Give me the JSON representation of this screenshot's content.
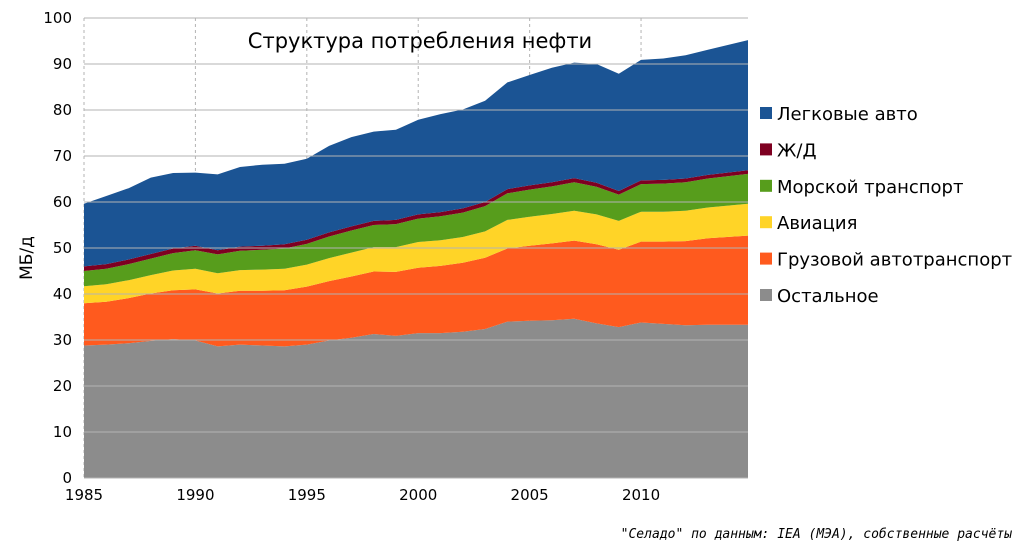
{
  "chart_data": {
    "type": "area",
    "title": "Структура потребления нефти",
    "xlabel": "",
    "ylabel": "МБ/д",
    "xlim": [
      1985,
      2014.8
    ],
    "ylim": [
      0,
      100
    ],
    "x_ticks": [
      1985,
      1990,
      1995,
      2000,
      2005,
      2010
    ],
    "y_ticks": [
      0,
      10,
      20,
      30,
      40,
      50,
      60,
      70,
      80,
      90,
      100
    ],
    "grid": true,
    "stacked": true,
    "legend_position": "right",
    "x": [
      1985,
      1986,
      1987,
      1988,
      1989,
      1990,
      1991,
      1992,
      1993,
      1994,
      1995,
      1996,
      1997,
      1998,
      1999,
      2000,
      2001,
      2002,
      2003,
      2004,
      2005,
      2006,
      2007,
      2008,
      2009,
      2010,
      2011,
      2012,
      2013,
      2014.8
    ],
    "series": [
      {
        "name": "Остальное",
        "color": "#8c8c8c",
        "values": [
          28.8,
          29.0,
          29.3,
          29.8,
          30.2,
          29.9,
          28.6,
          29.0,
          28.8,
          28.6,
          29.0,
          29.9,
          30.5,
          31.3,
          30.9,
          31.5,
          31.5,
          31.8,
          32.4,
          34.0,
          34.2,
          34.3,
          34.6,
          33.6,
          32.8,
          33.8,
          33.5,
          33.2,
          33.3,
          33.3
        ]
      },
      {
        "name": "Грузовой автотранспорт",
        "color": "#ff5a1e",
        "values": [
          9.2,
          9.3,
          9.8,
          10.3,
          10.6,
          11.1,
          11.5,
          11.7,
          11.9,
          12.2,
          12.6,
          12.9,
          13.3,
          13.6,
          13.9,
          14.2,
          14.6,
          15.0,
          15.5,
          15.9,
          16.3,
          16.7,
          17.0,
          17.2,
          16.8,
          17.6,
          17.9,
          18.3,
          18.8,
          19.4
        ]
      },
      {
        "name": "Авиация",
        "color": "#ffd427",
        "values": [
          3.7,
          3.8,
          3.9,
          4.0,
          4.3,
          4.5,
          4.4,
          4.5,
          4.6,
          4.7,
          4.8,
          5.0,
          5.2,
          5.3,
          5.4,
          5.6,
          5.6,
          5.6,
          5.7,
          6.2,
          6.3,
          6.4,
          6.5,
          6.5,
          6.3,
          6.5,
          6.5,
          6.6,
          6.7,
          6.9
        ]
      },
      {
        "name": "Морской транспорт",
        "color": "#579d1c",
        "values": [
          3.3,
          3.4,
          3.5,
          3.6,
          3.8,
          4.0,
          4.1,
          4.2,
          4.3,
          4.4,
          4.5,
          4.7,
          4.8,
          4.8,
          5.0,
          5.1,
          5.2,
          5.3,
          5.5,
          5.8,
          5.9,
          6.0,
          6.2,
          6.0,
          5.7,
          6.0,
          6.1,
          6.2,
          6.3,
          6.5
        ]
      },
      {
        "name": "Ж/Д",
        "color": "#7e0021",
        "values": [
          1.0,
          1.0,
          1.0,
          1.0,
          1.0,
          1.0,
          0.9,
          0.9,
          0.9,
          0.9,
          0.9,
          0.9,
          0.9,
          0.9,
          0.9,
          0.9,
          0.9,
          0.9,
          0.9,
          0.9,
          0.9,
          0.9,
          0.9,
          0.9,
          0.8,
          0.8,
          0.8,
          0.8,
          0.8,
          0.8
        ]
      },
      {
        "name": "Легковые авто",
        "color": "#1b5494",
        "values": [
          13.6,
          14.8,
          15.5,
          16.6,
          16.4,
          15.9,
          16.5,
          17.3,
          17.6,
          17.5,
          17.6,
          18.8,
          19.4,
          19.4,
          19.6,
          20.6,
          21.3,
          21.5,
          22.0,
          23.2,
          24.0,
          24.9,
          25.1,
          25.8,
          25.5,
          26.2,
          26.4,
          26.8,
          27.2,
          28.3
        ]
      }
    ],
    "annotations": [
      "\"Селадо\" по данным: IEA (МЭА), собственные расчёты"
    ]
  }
}
